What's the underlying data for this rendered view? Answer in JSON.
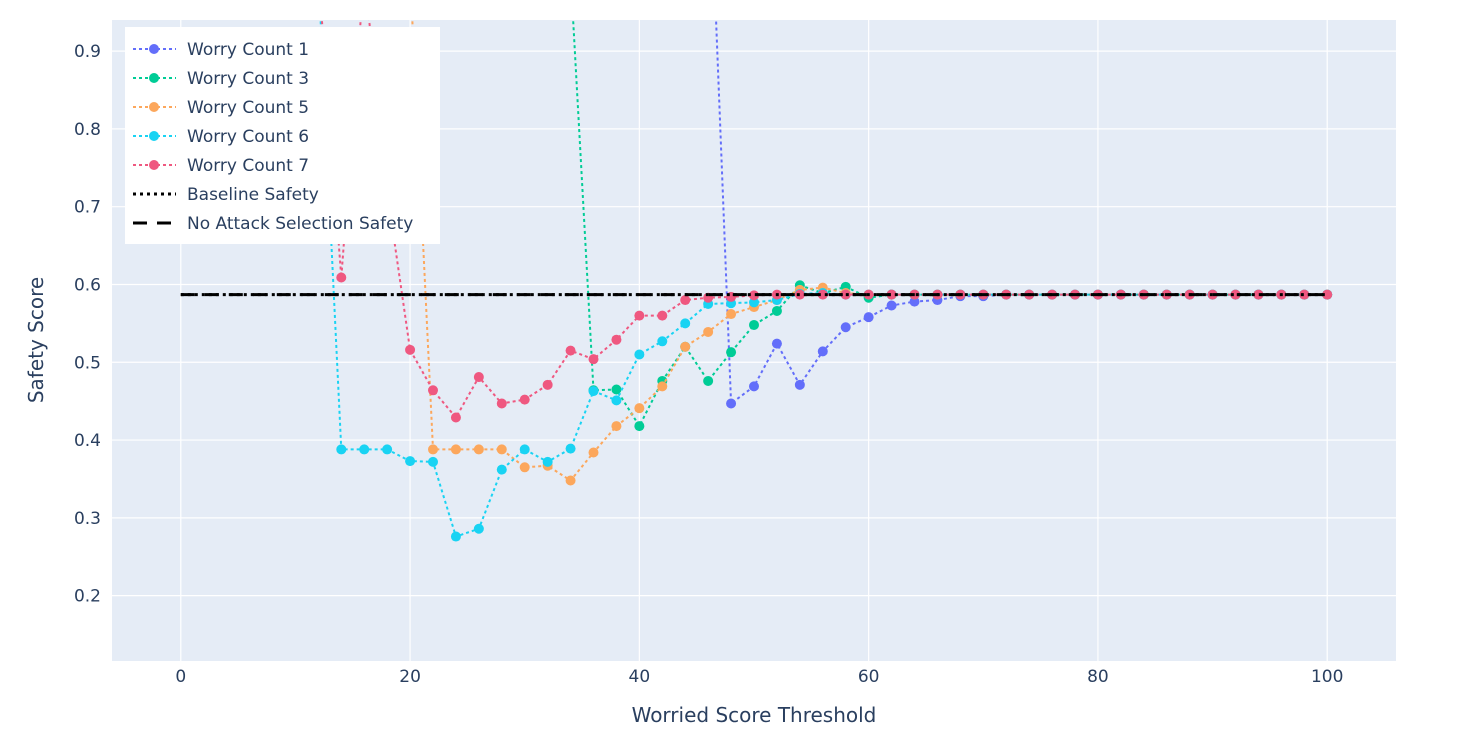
{
  "chart_data": {
    "type": "line",
    "title": "",
    "xlabel": "Worried Score Threshold",
    "ylabel": "Safety Score",
    "xlim": [
      -6,
      106
    ],
    "ylim": [
      0.116,
      0.94
    ],
    "x_ticks": [
      0,
      20,
      40,
      60,
      80,
      100
    ],
    "y_ticks": [
      0.2,
      0.3,
      0.4,
      0.5,
      0.6,
      0.7,
      0.8,
      0.9
    ],
    "grid": true,
    "legend_position": "top-left",
    "series": [
      {
        "name": "Worry Count 1",
        "color": "#636efa",
        "style": "dotted-markers",
        "x": [
          46,
          48,
          50,
          52,
          54,
          56,
          58,
          60,
          62,
          64,
          66,
          68,
          70,
          72,
          74,
          76,
          78,
          80,
          82,
          84,
          86,
          88,
          90,
          92,
          94,
          96,
          98,
          100
        ],
        "y": [
          1.2,
          0.447,
          0.469,
          0.524,
          0.471,
          0.514,
          0.545,
          0.558,
          0.573,
          0.578,
          0.58,
          0.585,
          0.585,
          0.587,
          0.587,
          0.587,
          0.587,
          0.587,
          0.587,
          0.587,
          0.587,
          0.587,
          0.587,
          0.587,
          0.587,
          0.587,
          0.587,
          0.587
        ]
      },
      {
        "name": "Worry Count 3",
        "color": "#00cc96",
        "style": "dotted-markers",
        "x": [
          34,
          36,
          38,
          40,
          42,
          44,
          46,
          48,
          50,
          52,
          54,
          56,
          58,
          60,
          62,
          64,
          66,
          68,
          70,
          72,
          74,
          76,
          78,
          80,
          82,
          84,
          86,
          88,
          90,
          92,
          94,
          96,
          98,
          100
        ],
        "y": [
          1.0,
          0.464,
          0.465,
          0.418,
          0.476,
          0.52,
          0.476,
          0.513,
          0.548,
          0.566,
          0.599,
          0.589,
          0.597,
          0.583,
          0.587,
          0.587,
          0.587,
          0.587,
          0.587,
          0.587,
          0.587,
          0.587,
          0.587,
          0.587,
          0.587,
          0.587,
          0.587,
          0.587,
          0.587,
          0.587,
          0.587,
          0.587,
          0.587,
          0.587
        ]
      },
      {
        "name": "Worry Count 5",
        "color": "#fca75c",
        "style": "dotted-markers",
        "x": [
          20,
          22,
          24,
          26,
          28,
          30,
          32,
          34,
          36,
          38,
          40,
          42,
          44,
          46,
          48,
          50,
          52,
          54,
          56,
          58,
          60,
          62,
          64,
          66,
          68,
          70,
          72,
          74,
          76,
          78,
          80,
          82,
          84,
          86,
          88,
          90,
          92,
          94,
          96,
          98,
          100
        ],
        "y": [
          1.0,
          0.388,
          0.388,
          0.388,
          0.388,
          0.365,
          0.367,
          0.348,
          0.384,
          0.418,
          0.441,
          0.469,
          0.52,
          0.539,
          0.562,
          0.571,
          0.58,
          0.593,
          0.596,
          0.589,
          0.587,
          0.587,
          0.587,
          0.587,
          0.587,
          0.587,
          0.587,
          0.587,
          0.587,
          0.587,
          0.587,
          0.587,
          0.587,
          0.587,
          0.587,
          0.587,
          0.587,
          0.587,
          0.587,
          0.587,
          0.587
        ]
      },
      {
        "name": "Worry Count 6",
        "color": "#19d3f3",
        "style": "dotted-markers",
        "x": [
          12,
          14,
          16,
          18,
          20,
          22,
          24,
          26,
          28,
          30,
          32,
          34,
          36,
          38,
          40,
          42,
          44,
          46,
          48,
          50,
          52,
          54,
          56,
          58,
          60,
          62,
          64,
          66,
          68,
          70,
          72,
          74,
          76,
          78,
          80,
          82,
          84,
          86,
          88,
          90,
          92,
          94,
          96,
          98,
          100
        ],
        "y": [
          1.0,
          0.388,
          0.388,
          0.388,
          0.373,
          0.372,
          0.276,
          0.286,
          0.362,
          0.388,
          0.372,
          0.389,
          0.463,
          0.451,
          0.51,
          0.527,
          0.55,
          0.575,
          0.576,
          0.577,
          0.58,
          0.588,
          0.589,
          0.587,
          0.587,
          0.587,
          0.587,
          0.587,
          0.587,
          0.587,
          0.587,
          0.587,
          0.587,
          0.587,
          0.587,
          0.587,
          0.587,
          0.587,
          0.587,
          0.587,
          0.587,
          0.587,
          0.587,
          0.587,
          0.587
        ]
      },
      {
        "name": "Worry Count 7",
        "color": "#ef5880",
        "style": "dotted-markers",
        "x": [
          12,
          14,
          16,
          18,
          20,
          22,
          24,
          26,
          28,
          30,
          32,
          34,
          36,
          38,
          40,
          42,
          44,
          46,
          48,
          50,
          52,
          54,
          56,
          58,
          60,
          62,
          64,
          66,
          68,
          70,
          72,
          74,
          76,
          78,
          80,
          82,
          84,
          86,
          88,
          90,
          92,
          94,
          96,
          98,
          100
        ],
        "y": [
          1.0,
          0.609,
          1.0,
          0.72,
          0.516,
          0.464,
          0.429,
          0.481,
          0.447,
          0.452,
          0.471,
          0.515,
          0.504,
          0.529,
          0.56,
          0.56,
          0.58,
          0.583,
          0.584,
          0.586,
          0.587,
          0.587,
          0.587,
          0.587,
          0.587,
          0.587,
          0.587,
          0.587,
          0.587,
          0.587,
          0.587,
          0.587,
          0.587,
          0.587,
          0.587,
          0.587,
          0.587,
          0.587,
          0.587,
          0.587,
          0.587,
          0.587,
          0.587,
          0.587,
          0.587
        ]
      },
      {
        "name": "Baseline Safety",
        "color": "#000000",
        "style": "dotted",
        "x": [
          0,
          100
        ],
        "y": [
          0.587,
          0.587
        ]
      },
      {
        "name": "No Attack Selection Safety",
        "color": "#000000",
        "style": "dashed",
        "x": [
          0,
          100
        ],
        "y": [
          0.587,
          0.587
        ]
      }
    ]
  }
}
